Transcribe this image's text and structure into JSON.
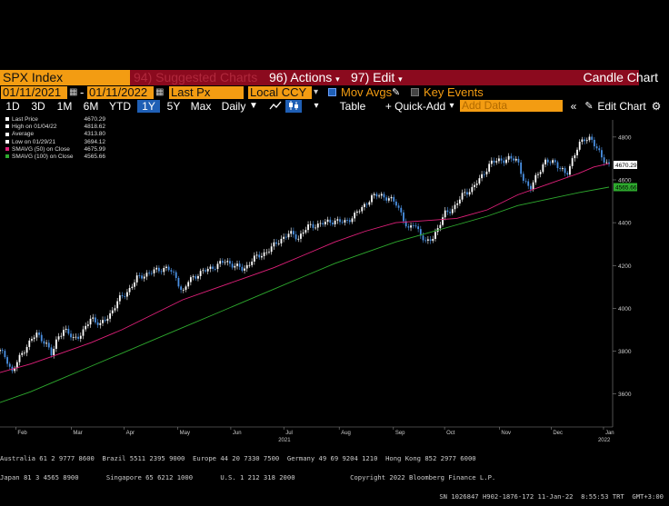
{
  "toolbar1": {
    "ticker": "SPX Index",
    "suggested": "94) Suggested Charts",
    "actions": "96) Actions",
    "edit": "97) Edit",
    "chart_type": "Candle Chart"
  },
  "toolbar2": {
    "start_date": "01/11/2021",
    "end_date": "01/11/2022",
    "price_field": "Last Px",
    "currency": "Local CCY",
    "mov_avgs": "Mov Avgs",
    "key_events": "Key Events"
  },
  "toolbar3": {
    "periods": [
      "1D",
      "3D",
      "1M",
      "6M",
      "YTD",
      "1Y",
      "5Y",
      "Max"
    ],
    "selected_period": "1Y",
    "frequency": "Daily",
    "table": "Table",
    "quick_add": "+ Quick-Add",
    "add_data_placeholder": "Add Data",
    "edit_chart": "Edit Chart"
  },
  "legend": [
    {
      "label": "Last Price",
      "value": "4670.29",
      "color": "#ffffff"
    },
    {
      "label": "High on 01/04/22",
      "value": "4818.62",
      "color": "#ffffff"
    },
    {
      "label": "Average",
      "value": "4313.80",
      "color": "#ffffff"
    },
    {
      "label": "Low on 01/29/21",
      "value": "3694.12",
      "color": "#ffffff"
    },
    {
      "label": "SMAVG (50)  on Close",
      "value": "4675.99",
      "color": "#e0207a"
    },
    {
      "label": "SMAVG (100)  on Close",
      "value": "4565.66",
      "color": "#2eaa2e"
    }
  ],
  "chart_data": {
    "type": "line",
    "title": "",
    "xlabel": "",
    "ylabel": "",
    "ylim": [
      3450,
      4880
    ],
    "yticks": [
      3600,
      3800,
      4000,
      4200,
      4400,
      4600,
      4800
    ],
    "xticks": [
      {
        "label": "Feb",
        "t": 0.026
      },
      {
        "label": "Mar",
        "t": 0.117
      },
      {
        "label": "Apr",
        "t": 0.204
      },
      {
        "label": "May",
        "t": 0.292
      },
      {
        "label": "Jun",
        "t": 0.379
      },
      {
        "label": "Jul",
        "t": 0.466
      },
      {
        "label": "Aug",
        "t": 0.557
      },
      {
        "label": "Sep",
        "t": 0.646
      },
      {
        "label": "Oct",
        "t": 0.73
      },
      {
        "label": "Nov",
        "t": 0.82
      },
      {
        "label": "Dec",
        "t": 0.905
      },
      {
        "label": "Jan",
        "t": 0.991
      }
    ],
    "year_labels": [
      {
        "label": "2021",
        "t": 0.466
      },
      {
        "label": "2022",
        "t": 0.991
      }
    ],
    "series": [
      {
        "name": "Last Price",
        "color": "#4a90e2",
        "points": [
          [
            0.0,
            3800
          ],
          [
            0.01,
            3770
          ],
          [
            0.02,
            3700
          ],
          [
            0.03,
            3760
          ],
          [
            0.045,
            3830
          ],
          [
            0.06,
            3880
          ],
          [
            0.075,
            3840
          ],
          [
            0.085,
            3780
          ],
          [
            0.095,
            3870
          ],
          [
            0.105,
            3900
          ],
          [
            0.12,
            3860
          ],
          [
            0.135,
            3880
          ],
          [
            0.15,
            3960
          ],
          [
            0.165,
            3920
          ],
          [
            0.18,
            3970
          ],
          [
            0.195,
            4040
          ],
          [
            0.21,
            4080
          ],
          [
            0.225,
            4140
          ],
          [
            0.24,
            4160
          ],
          [
            0.26,
            4180
          ],
          [
            0.275,
            4190
          ],
          [
            0.29,
            4140
          ],
          [
            0.3,
            4070
          ],
          [
            0.31,
            4130
          ],
          [
            0.325,
            4160
          ],
          [
            0.34,
            4180
          ],
          [
            0.355,
            4200
          ],
          [
            0.37,
            4220
          ],
          [
            0.385,
            4200
          ],
          [
            0.4,
            4180
          ],
          [
            0.415,
            4230
          ],
          [
            0.43,
            4250
          ],
          [
            0.445,
            4280
          ],
          [
            0.46,
            4320
          ],
          [
            0.475,
            4350
          ],
          [
            0.49,
            4330
          ],
          [
            0.505,
            4380
          ],
          [
            0.52,
            4390
          ],
          [
            0.535,
            4400
          ],
          [
            0.55,
            4410
          ],
          [
            0.565,
            4400
          ],
          [
            0.58,
            4430
          ],
          [
            0.595,
            4470
          ],
          [
            0.61,
            4520
          ],
          [
            0.625,
            4530
          ],
          [
            0.64,
            4510
          ],
          [
            0.65,
            4490
          ],
          [
            0.66,
            4440
          ],
          [
            0.67,
            4360
          ],
          [
            0.68,
            4400
          ],
          [
            0.69,
            4350
          ],
          [
            0.7,
            4300
          ],
          [
            0.71,
            4330
          ],
          [
            0.72,
            4380
          ],
          [
            0.73,
            4440
          ],
          [
            0.745,
            4470
          ],
          [
            0.76,
            4530
          ],
          [
            0.775,
            4560
          ],
          [
            0.79,
            4610
          ],
          [
            0.805,
            4680
          ],
          [
            0.82,
            4690
          ],
          [
            0.835,
            4700
          ],
          [
            0.85,
            4690
          ],
          [
            0.86,
            4600
          ],
          [
            0.87,
            4550
          ],
          [
            0.88,
            4620
          ],
          [
            0.895,
            4680
          ],
          [
            0.91,
            4690
          ],
          [
            0.92,
            4650
          ],
          [
            0.93,
            4620
          ],
          [
            0.94,
            4700
          ],
          [
            0.95,
            4760
          ],
          [
            0.96,
            4790
          ],
          [
            0.97,
            4800
          ],
          [
            0.98,
            4740
          ],
          [
            0.99,
            4700
          ],
          [
            1.0,
            4670
          ]
        ]
      },
      {
        "name": "SMAVG (50)  on Close",
        "color": "#e0207a",
        "points": [
          [
            0.0,
            3700
          ],
          [
            0.05,
            3740
          ],
          [
            0.1,
            3790
          ],
          [
            0.15,
            3840
          ],
          [
            0.2,
            3900
          ],
          [
            0.25,
            3970
          ],
          [
            0.3,
            4040
          ],
          [
            0.35,
            4090
          ],
          [
            0.4,
            4140
          ],
          [
            0.45,
            4190
          ],
          [
            0.5,
            4250
          ],
          [
            0.55,
            4310
          ],
          [
            0.6,
            4360
          ],
          [
            0.65,
            4400
          ],
          [
            0.7,
            4410
          ],
          [
            0.75,
            4420
          ],
          [
            0.8,
            4460
          ],
          [
            0.85,
            4530
          ],
          [
            0.9,
            4580
          ],
          [
            0.95,
            4630
          ],
          [
            0.975,
            4660
          ],
          [
            1.0,
            4676
          ]
        ]
      },
      {
        "name": "SMAVG (100)  on Close",
        "color": "#2eaa2e",
        "points": [
          [
            0.0,
            3560
          ],
          [
            0.05,
            3610
          ],
          [
            0.1,
            3670
          ],
          [
            0.15,
            3730
          ],
          [
            0.2,
            3790
          ],
          [
            0.25,
            3850
          ],
          [
            0.3,
            3910
          ],
          [
            0.35,
            3970
          ],
          [
            0.4,
            4030
          ],
          [
            0.45,
            4090
          ],
          [
            0.5,
            4150
          ],
          [
            0.55,
            4210
          ],
          [
            0.6,
            4260
          ],
          [
            0.65,
            4310
          ],
          [
            0.7,
            4350
          ],
          [
            0.75,
            4390
          ],
          [
            0.8,
            4430
          ],
          [
            0.85,
            4480
          ],
          [
            0.9,
            4510
          ],
          [
            0.95,
            4540
          ],
          [
            1.0,
            4566
          ]
        ]
      }
    ],
    "last_price_label": "4670.29",
    "sma100_label": "4565.66",
    "grid": false
  },
  "footer": {
    "line1": "Australia 61 2 9777 8600  Brazil 5511 2395 9000  Europe 44 20 7330 7500  Germany 49 69 9204 1210  Hong Kong 852 2977 6000",
    "line2": "Japan 81 3 4565 8900       Singapore 65 6212 1000       U.S. 1 212 318 2000              Copyright 2022 Bloomberg Finance L.P.",
    "line3": "SN 1026847 H902-1876-172 11-Jan-22  8:55:53 TRT  GMT+3:00"
  }
}
